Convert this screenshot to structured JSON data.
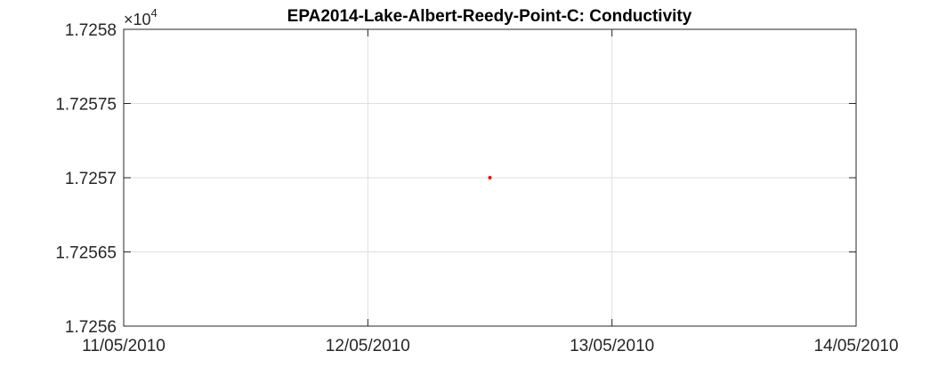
{
  "chart_data": {
    "type": "scatter",
    "title": "EPA2014-Lake-Albert-Reedy-Point-C: Conductivity",
    "xlabel": "",
    "ylabel": "",
    "y_exponent_label": {
      "base": "×10",
      "power": "4"
    },
    "x_ticks": [
      "11/05/2010",
      "12/05/2010",
      "13/05/2010",
      "14/05/2010"
    ],
    "x_range": [
      "11/05/2010",
      "14/05/2010"
    ],
    "y_ticks": [
      "1.7258",
      "1.72575",
      "1.7257",
      "1.72565",
      "1.7256"
    ],
    "ylim": [
      1.7256,
      1.7258
    ],
    "grid": true,
    "series": [
      {
        "color": "#ff0000",
        "points": [
          {
            "x": "12/05/2010 12:00",
            "y": 1.7257
          }
        ]
      }
    ]
  }
}
